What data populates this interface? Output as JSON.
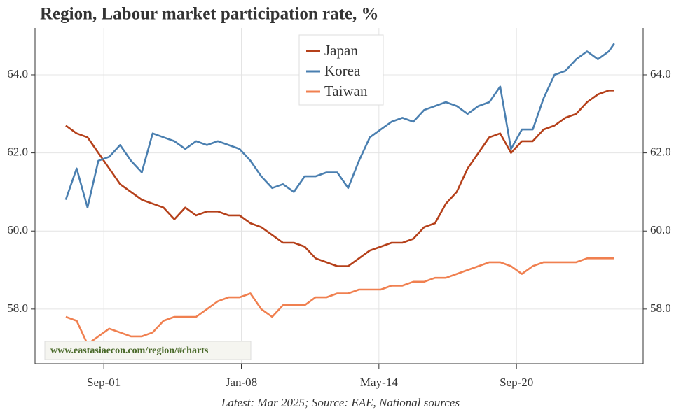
{
  "chart_data": {
    "type": "line",
    "title": "Region, Labour market participation rate, %",
    "source": "Latest: Mar 2025; Source: EAE, National sources",
    "watermark": "www.eastasiaecon.com/region/#charts",
    "x": [
      "Dec-99",
      "Jun-00",
      "Dec-00",
      "Jun-01",
      "Dec-01",
      "Jun-02",
      "Dec-02",
      "Jun-03",
      "Dec-03",
      "Jun-04",
      "Dec-04",
      "Jun-05",
      "Dec-05",
      "Jun-06",
      "Dec-06",
      "Jun-07",
      "Dec-07",
      "Jun-08",
      "Dec-08",
      "Jun-09",
      "Dec-09",
      "Jun-10",
      "Dec-10",
      "Jun-11",
      "Dec-11",
      "Jun-12",
      "Dec-12",
      "Jun-13",
      "Dec-13",
      "Jun-14",
      "Dec-14",
      "Jun-15",
      "Dec-15",
      "Jun-16",
      "Dec-16",
      "Jun-17",
      "Dec-17",
      "Jun-18",
      "Dec-18",
      "Jun-19",
      "Dec-19",
      "Jun-20",
      "Dec-20",
      "Jun-21",
      "Dec-21",
      "Jun-22",
      "Dec-22",
      "Jun-23",
      "Dec-23",
      "Jun-24",
      "Dec-24",
      "Mar-25"
    ],
    "series": [
      {
        "name": "Japan",
        "color": "#b5401a",
        "values": [
          62.7,
          62.5,
          62.4,
          62.0,
          61.6,
          61.2,
          61.0,
          60.8,
          60.7,
          60.6,
          60.3,
          60.6,
          60.4,
          60.5,
          60.5,
          60.4,
          60.4,
          60.2,
          60.1,
          59.9,
          59.7,
          59.7,
          59.6,
          59.3,
          59.2,
          59.1,
          59.1,
          59.3,
          59.5,
          59.6,
          59.7,
          59.7,
          59.8,
          60.1,
          60.2,
          60.7,
          61.0,
          61.6,
          62.0,
          62.4,
          62.5,
          62.0,
          62.3,
          62.3,
          62.6,
          62.7,
          62.9,
          63.0,
          63.3,
          63.5,
          63.6,
          63.6
        ]
      },
      {
        "name": "Korea",
        "color": "#4a7fb0",
        "values": [
          60.8,
          61.6,
          60.6,
          61.8,
          61.9,
          62.2,
          61.8,
          61.5,
          62.5,
          62.4,
          62.3,
          62.1,
          62.3,
          62.2,
          62.3,
          62.2,
          62.1,
          61.8,
          61.4,
          61.1,
          61.2,
          61.0,
          61.4,
          61.4,
          61.5,
          61.5,
          61.1,
          61.8,
          62.4,
          62.6,
          62.8,
          62.9,
          62.8,
          63.1,
          63.2,
          63.3,
          63.2,
          63.0,
          63.2,
          63.3,
          63.7,
          62.1,
          62.6,
          62.6,
          63.4,
          64.0,
          64.1,
          64.4,
          64.6,
          64.4,
          64.6,
          64.8
        ]
      },
      {
        "name": "Taiwan",
        "color": "#f08050",
        "values": [
          57.8,
          57.7,
          57.1,
          57.3,
          57.5,
          57.4,
          57.3,
          57.3,
          57.4,
          57.7,
          57.8,
          57.8,
          57.8,
          58.0,
          58.2,
          58.3,
          58.3,
          58.4,
          58.0,
          57.8,
          58.1,
          58.1,
          58.1,
          58.3,
          58.3,
          58.4,
          58.4,
          58.5,
          58.5,
          58.5,
          58.6,
          58.6,
          58.7,
          58.7,
          58.8,
          58.8,
          58.9,
          59.0,
          59.1,
          59.2,
          59.2,
          59.1,
          58.9,
          59.1,
          59.2,
          59.2,
          59.2,
          59.2,
          59.3,
          59.3,
          59.3,
          59.3
        ]
      }
    ],
    "xlim": [
      "Jul-98",
      "Jul-26"
    ],
    "xticks": [
      "Sep-01",
      "Jan-08",
      "May-14",
      "Sep-20"
    ],
    "ylim": [
      56.6,
      65.2
    ],
    "yticks": [
      {
        "value": 58,
        "label": "58.0"
      },
      {
        "value": 60,
        "label": "60.0"
      },
      {
        "value": 62,
        "label": "62.0"
      },
      {
        "value": 64,
        "label": "64.0"
      }
    ],
    "grid": true,
    "legend": "upper center"
  }
}
